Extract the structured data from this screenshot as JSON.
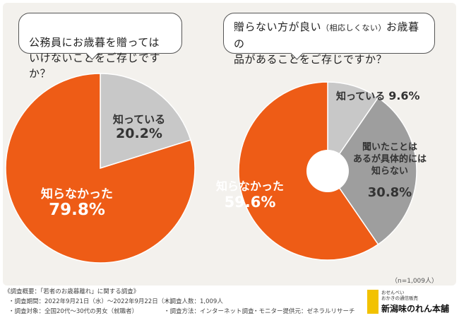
{
  "questions": {
    "left": "公務員にお歳暮を贈っては\nいけないことをご存じですか？",
    "right_pre": "贈らない方が良い",
    "right_small": "（相応しくない）",
    "right_post": "お歳暮の\n品があることをご存じですか？"
  },
  "chart_data": [
    {
      "type": "pie",
      "title": "公務員にお歳暮を贈ってはいけないことをご存じですか？",
      "slices": [
        {
          "label": "知っている",
          "value": 20.2,
          "value_text": "20.2%",
          "color": "#c8c8c8"
        },
        {
          "label": "知らなかった",
          "value": 79.8,
          "value_text": "79.8%",
          "color": "#ee5c16"
        }
      ]
    },
    {
      "type": "pie",
      "title": "贈らない方が良い（相応しくない）お歳暮の品があることをご存じですか？",
      "donut": true,
      "slices": [
        {
          "label": "知っている",
          "value": 9.6,
          "value_text": "9.6%",
          "color": "#c8c8c8"
        },
        {
          "label": "聞いたことはあるが具体的には知らない",
          "label_lines": [
            "聞いたことは",
            "あるが具体的には",
            "知らない"
          ],
          "value": 30.8,
          "value_text": "30.8%",
          "color": "#9e9e9e"
        },
        {
          "label": "知らなかった",
          "value": 59.6,
          "value_text": "59.6%",
          "color": "#ee5c16"
        }
      ]
    }
  ],
  "sample_note": "（n=1,009人）",
  "footer": {
    "title": "《調査概要：「若者のお歳暮離れ」に関する調査》",
    "period": "・調査期間：2022年9月21日（水）〜2022年9月22日（木）",
    "target": "・調査対象：全国20代〜30代の男女（就職者）",
    "count": "・調査人数：1,009人",
    "method": "・調査方法：インターネット調査",
    "provider": "・モニター提供元：ゼネラルリサーチ"
  },
  "brand": {
    "sub1": "おせんべい",
    "sub2": "おかきの通信販売",
    "name": "新潟味のれん本舗"
  },
  "colors": {
    "orange": "#ee5c16",
    "light_gray": "#c8c8c8",
    "mid_gray": "#9e9e9e",
    "panel": "#f3f1ed"
  }
}
